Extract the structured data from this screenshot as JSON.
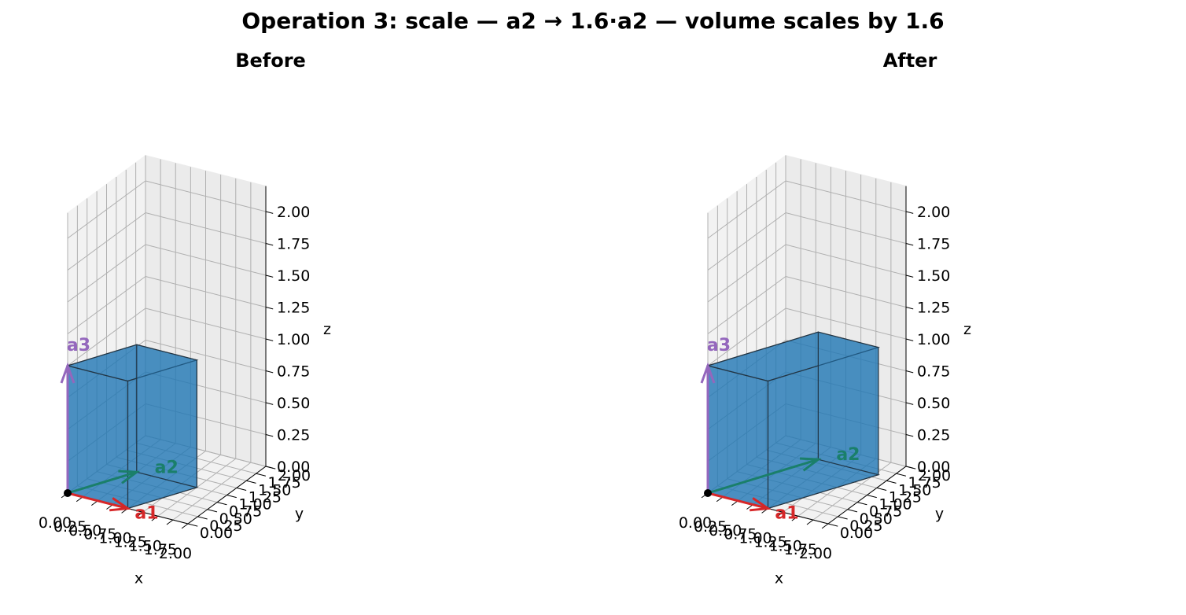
{
  "figure": {
    "title": "Operation 3: scale — a2 → 1.6·a2 — volume scales by 1.6"
  },
  "colors": {
    "solid": "#1f77b4",
    "a1": "#d62728",
    "a2": "#1a7f6a",
    "a3": "#9467bd",
    "origin": "#000000"
  },
  "chart_data": [
    {
      "type": "3d-parallelepiped",
      "title": "Before",
      "xlabel": "x",
      "ylabel": "y",
      "zlabel": "z",
      "xlim": [
        0,
        2
      ],
      "ylim": [
        0,
        2
      ],
      "zlim": [
        0,
        2.2
      ],
      "xticks": [
        "0.00",
        "0.25",
        "0.50",
        "0.75",
        "1.00",
        "1.25",
        "1.50",
        "1.75",
        "2.00"
      ],
      "yticks": [
        "0.00",
        "0.25",
        "0.50",
        "0.75",
        "1.00",
        "1.25",
        "1.50",
        "1.75",
        "2.00"
      ],
      "zticks": [
        "0.00",
        "0.25",
        "0.50",
        "0.75",
        "1.00",
        "1.25",
        "1.50",
        "1.75",
        "2.00"
      ],
      "origin": [
        0,
        0,
        0
      ],
      "vectors": [
        {
          "name": "a1",
          "value": [
            1,
            0,
            0
          ]
        },
        {
          "name": "a2",
          "value": [
            0.5,
            1,
            0
          ]
        },
        {
          "name": "a3",
          "value": [
            0,
            0,
            1
          ]
        }
      ]
    },
    {
      "type": "3d-parallelepiped",
      "title": "After",
      "xlabel": "x",
      "ylabel": "y",
      "zlabel": "z",
      "xlim": [
        0,
        2
      ],
      "ylim": [
        0,
        2
      ],
      "zlim": [
        0,
        2.2
      ],
      "xticks": [
        "0.00",
        "0.25",
        "0.50",
        "0.75",
        "1.00",
        "1.25",
        "1.50",
        "1.75",
        "2.00"
      ],
      "yticks": [
        "0.00",
        "0.25",
        "0.50",
        "0.75",
        "1.00",
        "1.25",
        "1.50",
        "1.75",
        "2.00"
      ],
      "zticks": [
        "0.00",
        "0.25",
        "0.50",
        "0.75",
        "1.00",
        "1.25",
        "1.50",
        "1.75",
        "2.00"
      ],
      "origin": [
        0,
        0,
        0
      ],
      "vectors": [
        {
          "name": "a1",
          "value": [
            1,
            0,
            0
          ]
        },
        {
          "name": "a2",
          "value": [
            0.8,
            1.6,
            0
          ]
        },
        {
          "name": "a3",
          "value": [
            0,
            0,
            1
          ]
        }
      ]
    }
  ]
}
